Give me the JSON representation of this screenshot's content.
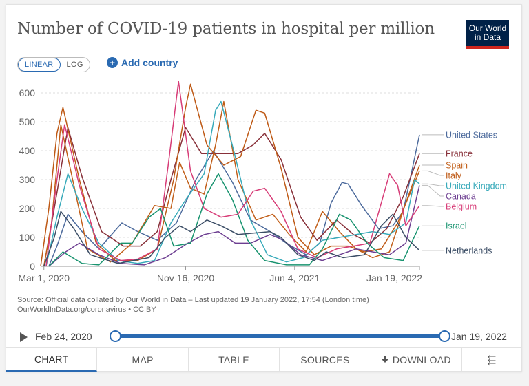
{
  "header": {
    "title": "Number of COVID-19 patients in hospital per million",
    "logo_line1": "Our World",
    "logo_line2": "in Data"
  },
  "controls": {
    "linear_label": "LINEAR",
    "log_label": "LOG",
    "add_country_label": "Add country"
  },
  "footer": {
    "source_line1": "Source: Official data collated by Our World in Data – Last updated 19 January 2022, 17:54 (London time)",
    "source_line2": "OurWorldInData.org/coronavirus • CC BY"
  },
  "timeline": {
    "start_label": "Feb 24, 2020",
    "end_label": "Jan 19, 2022",
    "start_fraction": 0.0,
    "end_fraction": 1.0
  },
  "tabs": {
    "chart": "CHART",
    "map": "MAP",
    "table": "TABLE",
    "sources": "SOURCES",
    "download": "DOWNLOAD"
  },
  "icons": {
    "add": "plus-circle-icon",
    "play": "play-icon",
    "download": "download-icon",
    "share": "share-icon"
  },
  "chart_data": {
    "type": "line",
    "title": "Number of COVID-19 patients in hospital per million",
    "scale": "linear",
    "x_domain": [
      "2020-02-24",
      "2022-01-19"
    ],
    "x_ticks": [
      {
        "date": "2020-03-01",
        "label": "Mar 1, 2020"
      },
      {
        "date": "2020-11-16",
        "label": "Nov 16, 2020"
      },
      {
        "date": "2021-06-04",
        "label": "Jun 4, 2021"
      },
      {
        "date": "2022-01-19",
        "label": "Jan 19, 2022"
      }
    ],
    "ylim": [
      0,
      600
    ],
    "y_ticks": [
      0,
      100,
      200,
      300,
      400,
      500,
      600
    ],
    "grid": "horizontal-dashed",
    "legend": "right-inline",
    "series": [
      {
        "name": "United States",
        "color": "#4c6a9c",
        "points": [
          [
            "2020-03-10",
            0
          ],
          [
            "2020-03-25",
            70
          ],
          [
            "2020-04-14",
            180
          ],
          [
            "2020-05-10",
            120
          ],
          [
            "2020-06-10",
            60
          ],
          [
            "2020-07-22",
            150
          ],
          [
            "2020-08-20",
            120
          ],
          [
            "2020-09-25",
            90
          ],
          [
            "2020-10-30",
            150
          ],
          [
            "2020-12-05",
            300
          ],
          [
            "2021-01-06",
            400
          ],
          [
            "2021-02-10",
            290
          ],
          [
            "2021-03-15",
            160
          ],
          [
            "2021-04-20",
            120
          ],
          [
            "2021-05-20",
            80
          ],
          [
            "2021-06-25",
            40
          ],
          [
            "2021-07-20",
            80
          ],
          [
            "2021-08-10",
            220
          ],
          [
            "2021-08-30",
            290
          ],
          [
            "2021-09-10",
            285
          ],
          [
            "2021-10-05",
            210
          ],
          [
            "2021-11-05",
            130
          ],
          [
            "2021-12-01",
            140
          ],
          [
            "2021-12-20",
            190
          ],
          [
            "2022-01-05",
            330
          ],
          [
            "2022-01-19",
            455
          ]
        ]
      },
      {
        "name": "France",
        "color": "#883039",
        "points": [
          [
            "2020-03-01",
            0
          ],
          [
            "2020-03-20",
            200
          ],
          [
            "2020-04-14",
            480
          ],
          [
            "2020-05-10",
            310
          ],
          [
            "2020-06-15",
            120
          ],
          [
            "2020-07-25",
            70
          ],
          [
            "2020-08-25",
            70
          ],
          [
            "2020-09-25",
            120
          ],
          [
            "2020-10-20",
            300
          ],
          [
            "2020-11-16",
            480
          ],
          [
            "2020-12-15",
            390
          ],
          [
            "2021-01-20",
            390
          ],
          [
            "2021-02-20",
            390
          ],
          [
            "2021-03-20",
            420
          ],
          [
            "2021-04-10",
            460
          ],
          [
            "2021-05-10",
            370
          ],
          [
            "2021-06-15",
            170
          ],
          [
            "2021-07-15",
            90
          ],
          [
            "2021-08-20",
            160
          ],
          [
            "2021-09-20",
            110
          ],
          [
            "2021-10-20",
            80
          ],
          [
            "2021-11-20",
            130
          ],
          [
            "2021-12-20",
            240
          ],
          [
            "2022-01-19",
            390
          ]
        ]
      },
      {
        "name": "Spain",
        "color": "#c15e18",
        "points": [
          [
            "2020-03-01",
            0
          ],
          [
            "2020-03-15",
            150
          ],
          [
            "2020-04-01",
            490
          ],
          [
            "2020-04-25",
            280
          ],
          [
            "2020-05-20",
            60
          ],
          [
            "2020-07-01",
            15
          ],
          [
            "2020-08-10",
            80
          ],
          [
            "2020-09-20",
            210
          ],
          [
            "2020-10-20",
            200
          ],
          [
            "2020-11-05",
            360
          ],
          [
            "2020-11-25",
            270
          ],
          [
            "2020-12-20",
            250
          ],
          [
            "2021-01-10",
            420
          ],
          [
            "2021-01-25",
            570
          ],
          [
            "2021-02-20",
            300
          ],
          [
            "2021-03-25",
            160
          ],
          [
            "2021-04-25",
            180
          ],
          [
            "2021-05-25",
            110
          ],
          [
            "2021-06-25",
            50
          ],
          [
            "2021-07-25",
            190
          ],
          [
            "2021-08-25",
            120
          ],
          [
            "2021-09-25",
            60
          ],
          [
            "2021-10-25",
            30
          ],
          [
            "2021-11-25",
            50
          ],
          [
            "2021-12-25",
            220
          ],
          [
            "2022-01-19",
            350
          ]
        ]
      },
      {
        "name": "Italy",
        "color": "#be5915",
        "points": [
          [
            "2020-02-24",
            0
          ],
          [
            "2020-03-10",
            200
          ],
          [
            "2020-03-25",
            460
          ],
          [
            "2020-04-05",
            550
          ],
          [
            "2020-05-05",
            300
          ],
          [
            "2020-06-05",
            80
          ],
          [
            "2020-07-10",
            20
          ],
          [
            "2020-08-20",
            20
          ],
          [
            "2020-09-25",
            60
          ],
          [
            "2020-10-25",
            300
          ],
          [
            "2020-11-16",
            550
          ],
          [
            "2020-11-25",
            630
          ],
          [
            "2020-12-25",
            420
          ],
          [
            "2021-01-25",
            350
          ],
          [
            "2021-02-25",
            380
          ],
          [
            "2021-03-25",
            540
          ],
          [
            "2021-04-10",
            530
          ],
          [
            "2021-05-10",
            340
          ],
          [
            "2021-06-10",
            100
          ],
          [
            "2021-07-10",
            40
          ],
          [
            "2021-08-10",
            70
          ],
          [
            "2021-09-10",
            70
          ],
          [
            "2021-10-10",
            50
          ],
          [
            "2021-11-10",
            60
          ],
          [
            "2021-12-10",
            150
          ],
          [
            "2022-01-19",
            330
          ]
        ]
      },
      {
        "name": "United Kingdom",
        "color": "#38aaba",
        "points": [
          [
            "2020-03-05",
            0
          ],
          [
            "2020-03-25",
            170
          ],
          [
            "2020-04-14",
            320
          ],
          [
            "2020-05-10",
            200
          ],
          [
            "2020-06-10",
            80
          ],
          [
            "2020-07-15",
            20
          ],
          [
            "2020-08-20",
            10
          ],
          [
            "2020-09-20",
            20
          ],
          [
            "2020-10-20",
            150
          ],
          [
            "2020-11-16",
            230
          ],
          [
            "2020-12-20",
            320
          ],
          [
            "2021-01-10",
            540
          ],
          [
            "2021-01-20",
            570
          ],
          [
            "2021-02-15",
            380
          ],
          [
            "2021-03-15",
            160
          ],
          [
            "2021-04-15",
            40
          ],
          [
            "2021-05-20",
            15
          ],
          [
            "2021-06-20",
            30
          ],
          [
            "2021-07-25",
            90
          ],
          [
            "2021-08-25",
            100
          ],
          [
            "2021-09-25",
            110
          ],
          [
            "2021-10-25",
            120
          ],
          [
            "2021-11-25",
            110
          ],
          [
            "2021-12-25",
            150
          ],
          [
            "2022-01-10",
            300
          ],
          [
            "2022-01-19",
            285
          ]
        ]
      },
      {
        "name": "Canada",
        "color": "#6d3e91",
        "points": [
          [
            "2020-03-10",
            0
          ],
          [
            "2020-04-10",
            50
          ],
          [
            "2020-05-05",
            80
          ],
          [
            "2020-06-10",
            40
          ],
          [
            "2020-07-20",
            10
          ],
          [
            "2020-09-01",
            5
          ],
          [
            "2020-10-10",
            30
          ],
          [
            "2020-11-20",
            80
          ],
          [
            "2020-12-20",
            110
          ],
          [
            "2021-01-15",
            120
          ],
          [
            "2021-02-15",
            80
          ],
          [
            "2021-03-15",
            80
          ],
          [
            "2021-04-20",
            110
          ],
          [
            "2021-05-15",
            90
          ],
          [
            "2021-06-15",
            40
          ],
          [
            "2021-07-25",
            20
          ],
          [
            "2021-08-25",
            40
          ],
          [
            "2021-09-25",
            60
          ],
          [
            "2021-10-25",
            50
          ],
          [
            "2021-11-25",
            40
          ],
          [
            "2021-12-25",
            80
          ],
          [
            "2022-01-19",
            280
          ]
        ]
      },
      {
        "name": "Belgium",
        "color": "#d73c77",
        "points": [
          [
            "2020-03-05",
            0
          ],
          [
            "2020-03-25",
            300
          ],
          [
            "2020-04-08",
            490
          ],
          [
            "2020-05-05",
            280
          ],
          [
            "2020-06-10",
            60
          ],
          [
            "2020-07-20",
            20
          ],
          [
            "2020-08-20",
            25
          ],
          [
            "2020-09-25",
            60
          ],
          [
            "2020-10-15",
            350
          ],
          [
            "2020-11-03",
            640
          ],
          [
            "2020-11-25",
            330
          ],
          [
            "2020-12-20",
            200
          ],
          [
            "2021-01-20",
            170
          ],
          [
            "2021-02-20",
            180
          ],
          [
            "2021-03-20",
            260
          ],
          [
            "2021-04-10",
            270
          ],
          [
            "2021-05-10",
            190
          ],
          [
            "2021-06-10",
            60
          ],
          [
            "2021-07-15",
            30
          ],
          [
            "2021-08-20",
            60
          ],
          [
            "2021-09-20",
            70
          ],
          [
            "2021-10-20",
            80
          ],
          [
            "2021-11-25",
            320
          ],
          [
            "2021-12-10",
            280
          ],
          [
            "2021-12-25",
            140
          ],
          [
            "2022-01-19",
            210
          ]
        ]
      },
      {
        "name": "Israel",
        "color": "#18936f",
        "points": [
          [
            "2020-03-10",
            0
          ],
          [
            "2020-04-05",
            50
          ],
          [
            "2020-05-10",
            10
          ],
          [
            "2020-06-10",
            5
          ],
          [
            "2020-07-20",
            80
          ],
          [
            "2020-08-10",
            80
          ],
          [
            "2020-09-10",
            170
          ],
          [
            "2020-10-01",
            200
          ],
          [
            "2020-10-25",
            70
          ],
          [
            "2020-11-25",
            80
          ],
          [
            "2020-12-25",
            250
          ],
          [
            "2021-01-15",
            320
          ],
          [
            "2021-02-10",
            230
          ],
          [
            "2021-03-10",
            90
          ],
          [
            "2021-04-10",
            20
          ],
          [
            "2021-05-20",
            5
          ],
          [
            "2021-07-01",
            5
          ],
          [
            "2021-07-25",
            60
          ],
          [
            "2021-08-25",
            180
          ],
          [
            "2021-09-15",
            160
          ],
          [
            "2021-10-15",
            80
          ],
          [
            "2021-11-15",
            30
          ],
          [
            "2021-12-20",
            20
          ],
          [
            "2022-01-19",
            140
          ]
        ]
      },
      {
        "name": "Netherlands",
        "color": "#3c4e66",
        "points": [
          [
            "2020-03-01",
            0
          ],
          [
            "2020-03-20",
            100
          ],
          [
            "2020-04-01",
            190
          ],
          [
            "2020-04-25",
            130
          ],
          [
            "2020-05-25",
            40
          ],
          [
            "2020-07-15",
            10
          ],
          [
            "2020-09-10",
            30
          ],
          [
            "2020-10-10",
            100
          ],
          [
            "2020-11-05",
            140
          ],
          [
            "2020-11-25",
            120
          ],
          [
            "2020-12-25",
            160
          ],
          [
            "2021-01-20",
            140
          ],
          [
            "2021-02-20",
            110
          ],
          [
            "2021-04-20",
            120
          ],
          [
            "2021-05-10",
            100
          ],
          [
            "2021-06-10",
            40
          ],
          [
            "2021-07-10",
            20
          ],
          [
            "2021-08-01",
            50
          ],
          [
            "2021-09-01",
            30
          ],
          [
            "2021-10-10",
            40
          ],
          [
            "2021-11-10",
            140
          ],
          [
            "2021-12-01",
            180
          ],
          [
            "2021-12-25",
            100
          ],
          [
            "2022-01-19",
            55
          ]
        ]
      }
    ]
  }
}
